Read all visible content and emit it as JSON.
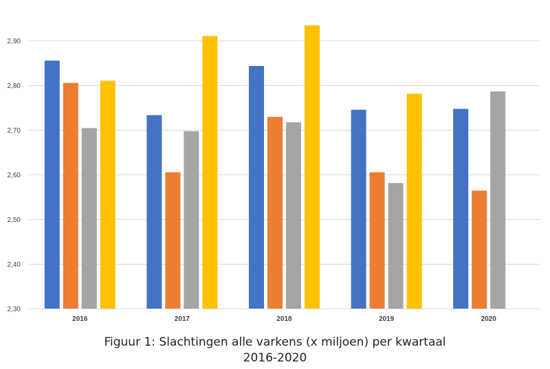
{
  "chart_data": {
    "type": "bar",
    "categories": [
      "2016",
      "2017",
      "2018",
      "2019",
      "2020"
    ],
    "series": [
      {
        "values": [
          2.855,
          2.733,
          2.843,
          2.745,
          2.747
        ],
        "color": "#4472C4"
      },
      {
        "values": [
          2.805,
          2.605,
          2.729,
          2.605,
          2.564
        ],
        "color": "#ED7D31"
      },
      {
        "values": [
          2.704,
          2.697,
          2.717,
          2.581,
          2.786
        ],
        "color": "#A5A5A5"
      },
      {
        "values": [
          2.81,
          2.91,
          2.934,
          2.781,
          null
        ],
        "color": "#FFC000"
      }
    ],
    "ylim": [
      2.3,
      2.95
    ],
    "yticks": [
      "2,30",
      "2,40",
      "2,50",
      "2,60",
      "2,70",
      "2,80",
      "2,90"
    ],
    "ytick_values": [
      2.3,
      2.4,
      2.5,
      2.6,
      2.7,
      2.8,
      2.9
    ],
    "grid": true,
    "legend": "none"
  },
  "caption": {
    "line1": "Figuur 1: Slachtingen alle varkens (x miljoen) per kwartaal",
    "line2": "2016-2020"
  }
}
